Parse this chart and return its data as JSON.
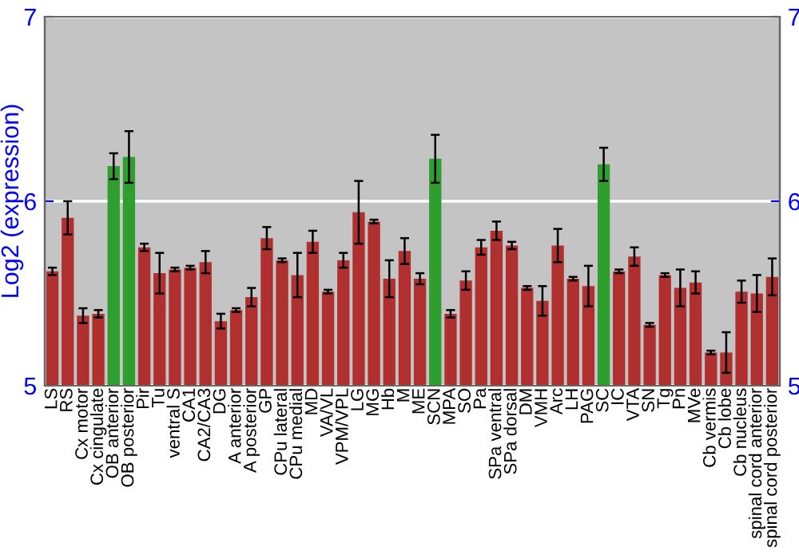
{
  "chart_data": {
    "type": "bar",
    "ylabel": "Log2 (expression)",
    "categories": [
      "LS",
      "RS",
      "Cx motor",
      "Cx cingulate",
      "OB anterior",
      "OB posterior",
      "Pir",
      "Tu",
      "ventral S",
      "CA1",
      "CA2/CA3",
      "DG",
      "A anterior",
      "A posterior",
      "GP",
      "CPu lateral",
      "CPu medial",
      "MD",
      "VA/VL",
      "VPM/VPL",
      "LG",
      "MG",
      "Hb",
      "M",
      "ME",
      "SCN",
      "MPA",
      "SO",
      "Pa",
      "SPa ventral",
      "SPa dorsal",
      "DM",
      "VMH",
      "Arc",
      "LH",
      "PAG",
      "SC",
      "IC",
      "VTA",
      "SN",
      "Tg",
      "Pn",
      "MVe",
      "Cb vermis",
      "Cb lobe",
      "Cb nucleus",
      "spinal cord anterior",
      "spinal cord posterior"
    ],
    "values": [
      5.62,
      5.91,
      5.38,
      5.39,
      6.19,
      6.24,
      5.75,
      5.61,
      5.63,
      5.64,
      5.67,
      5.35,
      5.41,
      5.48,
      5.8,
      5.68,
      5.6,
      5.78,
      5.51,
      5.68,
      5.94,
      5.89,
      5.58,
      5.73,
      5.58,
      6.23,
      5.39,
      5.57,
      5.75,
      5.84,
      5.76,
      5.53,
      5.46,
      5.76,
      5.58,
      5.54,
      6.2,
      5.62,
      5.7,
      5.33,
      5.6,
      5.53,
      5.56,
      5.18,
      5.18,
      5.51,
      5.5,
      5.59
    ],
    "errors": [
      0.02,
      0.09,
      0.04,
      0.02,
      0.07,
      0.14,
      0.02,
      0.11,
      0.01,
      0.01,
      0.06,
      0.04,
      0.01,
      0.05,
      0.06,
      0.01,
      0.12,
      0.06,
      0.01,
      0.04,
      0.17,
      0.01,
      0.1,
      0.07,
      0.03,
      0.13,
      0.02,
      0.05,
      0.04,
      0.05,
      0.02,
      0.01,
      0.08,
      0.09,
      0.01,
      0.11,
      0.09,
      0.01,
      0.05,
      0.01,
      0.01,
      0.1,
      0.06,
      0.01,
      0.11,
      0.06,
      0.1,
      0.1
    ],
    "colors": [
      "#b03030",
      "#b03030",
      "#b03030",
      "#b03030",
      "#2e9e2e",
      "#2e9e2e",
      "#b03030",
      "#b03030",
      "#b03030",
      "#b03030",
      "#b03030",
      "#b03030",
      "#b03030",
      "#b03030",
      "#b03030",
      "#b03030",
      "#b03030",
      "#b03030",
      "#b03030",
      "#b03030",
      "#b03030",
      "#b03030",
      "#b03030",
      "#b03030",
      "#b03030",
      "#2e9e2e",
      "#b03030",
      "#b03030",
      "#b03030",
      "#b03030",
      "#b03030",
      "#b03030",
      "#b03030",
      "#b03030",
      "#b03030",
      "#b03030",
      "#2e9e2e",
      "#b03030",
      "#b03030",
      "#b03030",
      "#b03030",
      "#b03030",
      "#b03030",
      "#b03030",
      "#b03030",
      "#b03030",
      "#b03030",
      "#b03030"
    ],
    "ylim": [
      5,
      7
    ],
    "yticks": [
      5,
      6,
      7
    ],
    "y2lim": [
      5,
      7
    ],
    "y2ticks": [
      5,
      6,
      7
    ],
    "grid": "y"
  }
}
